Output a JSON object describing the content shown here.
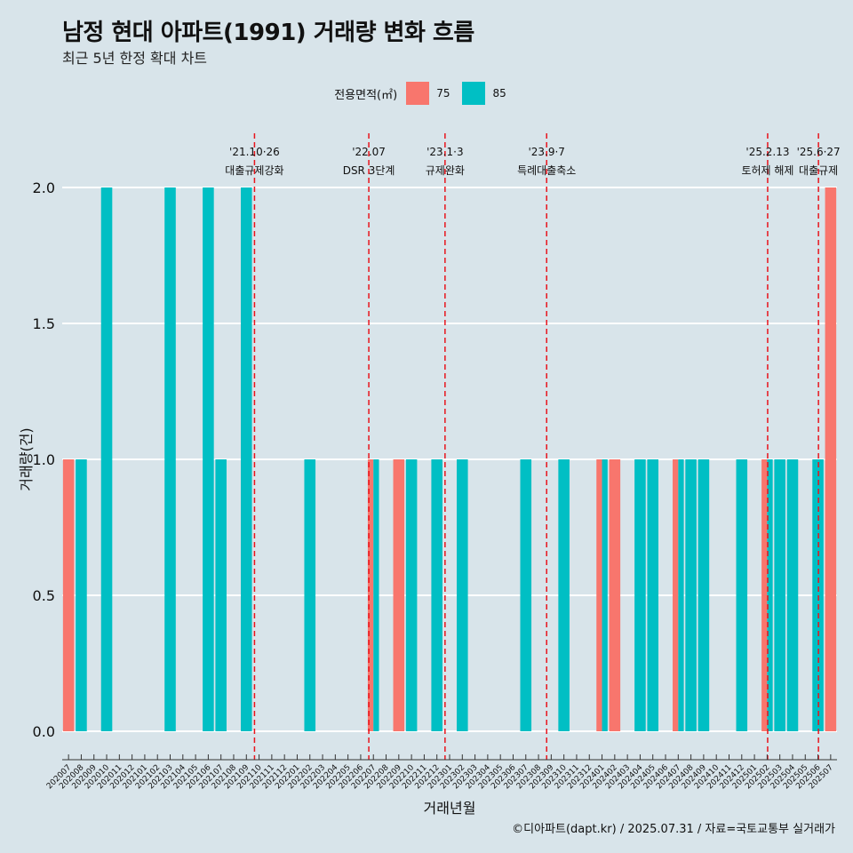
{
  "chart_data": {
    "type": "bar",
    "title": "남정 현대 아파트(1991) 거래량 변화 흐름",
    "subtitle": "최근 5년 한정 확대 차트",
    "xlabel": "거래년월",
    "ylabel": "거래량(건)",
    "ylim": [
      0,
      2
    ],
    "yticks": [
      "0.0",
      "0.5",
      "1.0",
      "1.5",
      "2.0"
    ],
    "legend": {
      "title": "전용면적(㎡)",
      "position": "top",
      "entries": [
        {
          "name": "75",
          "color": "#F8766D"
        },
        {
          "name": "85",
          "color": "#00BFC4"
        }
      ]
    },
    "categories": [
      "202007",
      "202008",
      "202009",
      "202010",
      "202011",
      "202012",
      "202101",
      "202102",
      "202103",
      "202104",
      "202105",
      "202106",
      "202107",
      "202108",
      "202109",
      "202110",
      "202111",
      "202112",
      "202201",
      "202202",
      "202203",
      "202204",
      "202205",
      "202206",
      "202207",
      "202208",
      "202209",
      "202210",
      "202211",
      "202212",
      "202301",
      "202302",
      "202303",
      "202304",
      "202305",
      "202306",
      "202307",
      "202308",
      "202309",
      "202310",
      "202311",
      "202312",
      "202401",
      "202402",
      "202403",
      "202404",
      "202405",
      "202406",
      "202407",
      "202408",
      "202409",
      "202410",
      "202411",
      "202412",
      "202501",
      "202502",
      "202503",
      "202504",
      "202505",
      "202506",
      "202507"
    ],
    "series": [
      {
        "name": "75",
        "color": "#F8766D",
        "values": [
          1,
          0,
          0,
          0,
          0,
          0,
          0,
          0,
          0,
          0,
          0,
          0,
          0,
          0,
          0,
          0,
          0,
          0,
          0,
          0,
          0,
          0,
          0,
          0,
          1,
          0,
          1,
          0,
          0,
          0,
          0,
          0,
          0,
          0,
          0,
          0,
          0,
          0,
          0,
          0,
          0,
          0,
          1,
          1,
          0,
          0,
          0,
          0,
          1,
          0,
          0,
          0,
          0,
          0,
          0,
          1,
          0,
          0,
          0,
          0,
          2
        ]
      },
      {
        "name": "85",
        "color": "#00BFC4",
        "values": [
          0,
          1,
          0,
          2,
          0,
          0,
          0,
          0,
          2,
          0,
          0,
          2,
          1,
          0,
          2,
          0,
          0,
          0,
          0,
          1,
          0,
          0,
          0,
          0,
          1,
          0,
          0,
          1,
          0,
          1,
          0,
          1,
          0,
          0,
          0,
          0,
          1,
          0,
          0,
          1,
          0,
          0,
          1,
          0,
          0,
          1,
          1,
          0,
          1,
          1,
          1,
          0,
          0,
          1,
          0,
          1,
          1,
          1,
          0,
          1,
          0
        ]
      }
    ],
    "events": [
      {
        "position": 15.0,
        "label_date": "'21.10·26",
        "label_text": "대출규제강화"
      },
      {
        "position": 24.0,
        "label_date": "'22.07",
        "label_text": "DSR 3단계"
      },
      {
        "position": 30.0,
        "label_date": "'23.1·3",
        "label_text": "규제완화"
      },
      {
        "position": 38.0,
        "label_date": "'23.9·7",
        "label_text": "특례대출축소"
      },
      {
        "position": 55.4,
        "label_date": "'25.2.13",
        "label_text": "토허제 해제"
      },
      {
        "position": 59.4,
        "label_date": "'25.6·27",
        "label_text": "대출규제"
      }
    ],
    "caption": "©디아파트(dapt.kr) / 2025.07.31 / 자료=국토교통부 실거래가"
  }
}
